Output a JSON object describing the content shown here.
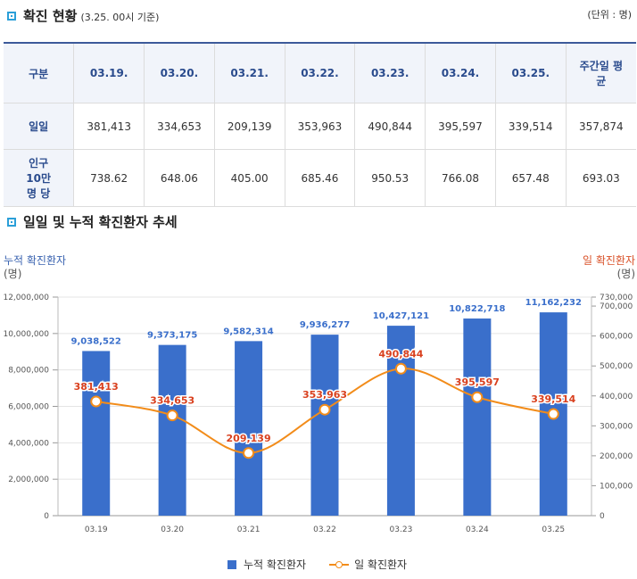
{
  "header": {
    "title": "확진 현황",
    "subtitle": "(3.25. 00시 기준)",
    "unit": "(단위 : 명)"
  },
  "table": {
    "columns": [
      "구분",
      "03.19.",
      "03.20.",
      "03.21.",
      "03.22.",
      "03.23.",
      "03.24.",
      "03.25.",
      "주간일 평균"
    ],
    "rows": [
      {
        "label": "일일",
        "values": [
          "381,413",
          "334,653",
          "209,139",
          "353,963",
          "490,844",
          "395,597",
          "339,514",
          "357,874"
        ]
      },
      {
        "label": "인구 10만 명 당",
        "values": [
          "738.62",
          "648.06",
          "405.00",
          "685.46",
          "950.53",
          "766.08",
          "657.48",
          "693.03"
        ]
      }
    ]
  },
  "chart_section": {
    "title": "일일 및 누적 확진환자 추세",
    "left_axis_title": "누적 확진환자",
    "left_axis_unit": "(명)",
    "right_axis_title": "일 확진환자",
    "right_axis_unit": "(명)"
  },
  "legend": {
    "bar_label": "누적 확진환자",
    "line_label": "일 확진환자"
  },
  "colors": {
    "bar": "#3a6fcb",
    "line": "#f28c1a",
    "bar_label": "#3a6fcb",
    "line_label": "#d9401e",
    "header_accent": "#2b9fd8"
  },
  "chart_data": {
    "type": "bar",
    "title": "일일 및 누적 확진환자 추세",
    "categories": [
      "03.19",
      "03.20",
      "03.21",
      "03.22",
      "03.23",
      "03.24",
      "03.25"
    ],
    "series": [
      {
        "name": "누적 확진환자",
        "type": "bar",
        "axis": "left",
        "values": [
          9038522,
          9373175,
          9582314,
          9936277,
          10427121,
          10822718,
          11162232
        ],
        "labels": [
          "9,038,522",
          "9,373,175",
          "9,582,314",
          "9,936,277",
          "10,427,121",
          "10,822,718",
          "11,162,232"
        ]
      },
      {
        "name": "일 확진환자",
        "type": "line",
        "axis": "right",
        "values": [
          381413,
          334653,
          209139,
          353963,
          490844,
          395597,
          339514
        ],
        "labels": [
          "381,413",
          "334,653",
          "209,139",
          "353,963",
          "490,844",
          "395,597",
          "339,514"
        ]
      }
    ],
    "y_left": {
      "label": "누적 확진환자 (명)",
      "range": [
        0,
        12000000
      ],
      "ticks": [
        0,
        2000000,
        4000000,
        6000000,
        8000000,
        10000000,
        12000000
      ],
      "tick_labels": [
        "0",
        "2,000,000",
        "4,000,000",
        "6,000,000",
        "8,000,000",
        "10,000,000",
        "12,000,000"
      ]
    },
    "y_right": {
      "label": "일 확진환자 (명)",
      "range": [
        0,
        730000
      ],
      "ticks": [
        0,
        100000,
        200000,
        300000,
        400000,
        500000,
        600000,
        700000,
        730000
      ],
      "tick_labels": [
        "0",
        "100,000",
        "200,000",
        "300,000",
        "400,000",
        "500,000",
        "600,000",
        "700,000",
        "730,000"
      ]
    },
    "legend_position": "bottom-center",
    "grid": true
  }
}
